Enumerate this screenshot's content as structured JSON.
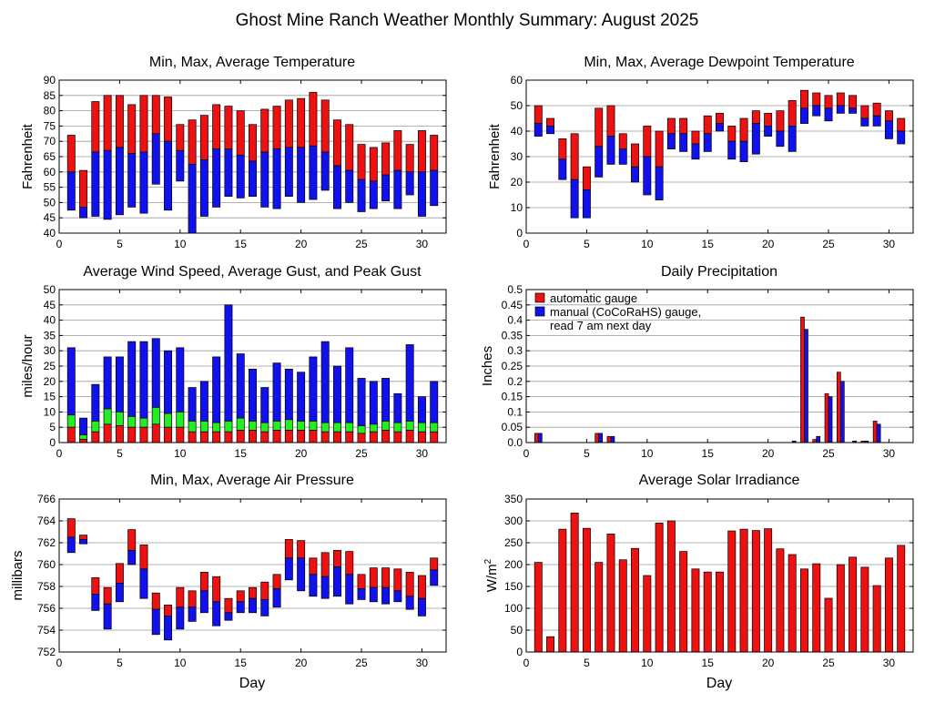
{
  "main_title": "Ghost Mine Ranch Weather Monthly Summary: August 2025",
  "colors": {
    "red": "#ee1111",
    "blue": "#1111ee",
    "green": "#22ee22"
  },
  "chart_data": [
    {
      "id": "temp",
      "type": "bar",
      "title": "Min, Max, Average Temperature",
      "xlabel": "",
      "ylabel": "Fahrenheit",
      "xlim": [
        0,
        32
      ],
      "ylim": [
        40,
        90
      ],
      "xticks": [
        0,
        5,
        10,
        15,
        20,
        25,
        30
      ],
      "yticks": [
        40,
        45,
        50,
        55,
        60,
        65,
        70,
        75,
        80,
        85,
        90
      ],
      "x": [
        1,
        2,
        3,
        4,
        5,
        6,
        7,
        8,
        9,
        10,
        11,
        12,
        13,
        14,
        15,
        16,
        17,
        18,
        19,
        20,
        21,
        22,
        23,
        24,
        25,
        26,
        27,
        28,
        29,
        30,
        31
      ],
      "series": [
        {
          "name": "min",
          "values": [
            47.5,
            45,
            45.5,
            44.5,
            46,
            48.5,
            46.5,
            56,
            47.5,
            57,
            40,
            45.5,
            48.5,
            52,
            51.5,
            52,
            48.5,
            48,
            52,
            50,
            51,
            54,
            48,
            50,
            47,
            48,
            50.5,
            48,
            52.5,
            45.5,
            49
          ]
        },
        {
          "name": "average",
          "values": [
            60,
            48.5,
            66.5,
            67,
            68,
            66,
            66.5,
            72.5,
            70,
            67,
            62.5,
            64,
            67.5,
            67.5,
            65.5,
            63.5,
            66.5,
            67.5,
            68,
            68,
            68.5,
            66.5,
            62,
            60.5,
            57.5,
            57,
            59,
            60.5,
            60,
            60,
            60.5
          ]
        },
        {
          "name": "max",
          "values": [
            72,
            60.5,
            83,
            85,
            85,
            82,
            85,
            85,
            84.5,
            75.5,
            77,
            78.5,
            82,
            81.5,
            80,
            75.5,
            80.5,
            81.5,
            83.5,
            84,
            86,
            83.5,
            77,
            75.5,
            69,
            68,
            69.5,
            73.5,
            69,
            73.5,
            72
          ]
        }
      ]
    },
    {
      "id": "dew",
      "type": "bar",
      "title": "Min, Max, Average Dewpoint Temperature",
      "xlabel": "",
      "ylabel": "Fahrenheit",
      "xlim": [
        0,
        32
      ],
      "ylim": [
        0,
        60
      ],
      "xticks": [
        0,
        5,
        10,
        15,
        20,
        25,
        30
      ],
      "yticks": [
        0,
        10,
        20,
        30,
        40,
        50,
        60
      ],
      "x": [
        1,
        2,
        3,
        4,
        5,
        6,
        7,
        8,
        9,
        10,
        11,
        12,
        13,
        14,
        15,
        16,
        17,
        18,
        19,
        20,
        21,
        22,
        23,
        24,
        25,
        26,
        27,
        28,
        29,
        30,
        31
      ],
      "series": [
        {
          "name": "min",
          "values": [
            38,
            39,
            21,
            6,
            6,
            22,
            27,
            27,
            20,
            15,
            13,
            33,
            32,
            29,
            32,
            40,
            29,
            28,
            31,
            38,
            34,
            32,
            43,
            46,
            44,
            47,
            47,
            42,
            42,
            37,
            35
          ]
        },
        {
          "name": "average",
          "values": [
            43,
            42,
            29,
            21,
            17,
            34,
            38,
            33,
            26,
            30,
            26,
            39,
            39,
            35,
            39,
            43,
            36,
            36,
            43,
            42,
            40,
            42,
            49,
            50,
            49,
            50,
            49,
            45,
            46,
            44,
            40
          ]
        },
        {
          "name": "max",
          "values": [
            50,
            45,
            37,
            39,
            26,
            49,
            50,
            39,
            35,
            42,
            40,
            45,
            45,
            40,
            46,
            47,
            42,
            45,
            48,
            47,
            48,
            52,
            56,
            55,
            54,
            55,
            54,
            50,
            51,
            48,
            45
          ]
        }
      ]
    },
    {
      "id": "wind",
      "type": "bar",
      "title": "Average Wind Speed, Average Gust, and Peak Gust",
      "xlabel": "",
      "ylabel": "miles/hour",
      "xlim": [
        0,
        32
      ],
      "ylim": [
        0,
        50
      ],
      "xticks": [
        0,
        5,
        10,
        15,
        20,
        25,
        30
      ],
      "yticks": [
        0,
        5,
        10,
        15,
        20,
        25,
        30,
        35,
        40,
        45,
        50
      ],
      "x": [
        1,
        2,
        3,
        4,
        5,
        6,
        7,
        8,
        9,
        10,
        11,
        12,
        13,
        14,
        15,
        16,
        17,
        18,
        19,
        20,
        21,
        22,
        23,
        24,
        25,
        26,
        27,
        28,
        29,
        30,
        31
      ],
      "series": [
        {
          "name": "average wind",
          "values": [
            5,
            1,
            3.5,
            6,
            5.5,
            5,
            5,
            6,
            5,
            5,
            3.5,
            3.5,
            3.5,
            3.5,
            4,
            4,
            3.5,
            4,
            4,
            4,
            4,
            3.5,
            3.5,
            3.5,
            3,
            3.5,
            4,
            3.5,
            4,
            3.5,
            3.5
          ]
        },
        {
          "name": "average gust",
          "values": [
            9,
            2.5,
            7,
            11,
            10,
            8.5,
            8,
            11.5,
            9.5,
            10,
            7,
            7,
            6.5,
            7,
            8,
            7,
            6.5,
            7,
            7.5,
            7,
            7,
            6.5,
            6.5,
            6.5,
            5.5,
            6,
            7,
            6.5,
            7,
            6.5,
            6.5
          ]
        },
        {
          "name": "peak gust",
          "values": [
            31,
            8,
            19,
            28,
            28,
            33,
            33,
            34,
            30,
            31,
            18,
            20,
            28,
            45,
            29,
            24,
            18,
            26,
            24,
            23,
            28,
            33,
            25,
            31,
            21,
            20,
            21,
            16,
            32,
            15,
            20
          ]
        }
      ]
    },
    {
      "id": "precip",
      "type": "bar",
      "title": "Daily Precipitation",
      "xlabel": "",
      "ylabel": "Inches",
      "xlim": [
        0,
        32
      ],
      "ylim": [
        0,
        0.5
      ],
      "xticks": [
        0,
        5,
        10,
        15,
        20,
        25,
        30
      ],
      "yticks": [
        0,
        0.05,
        0.1,
        0.15,
        0.2,
        0.25,
        0.3,
        0.35,
        0.4,
        0.45,
        0.5
      ],
      "ytick_labels": [
        "0.0",
        "0.05",
        "0.1",
        "0.15",
        "0.2",
        "0.25",
        "0.3",
        "0.35",
        "0.4",
        "0.45",
        "0.5"
      ],
      "legend": [
        {
          "label": "automatic gauge",
          "color": "red"
        },
        {
          "label": "manual (CoCoRaHS) gauge,",
          "color": "blue"
        },
        {
          "label": "read 7 am next day",
          "color": ""
        }
      ],
      "x": [
        1,
        2,
        3,
        4,
        5,
        6,
        7,
        8,
        9,
        10,
        11,
        12,
        13,
        14,
        15,
        16,
        17,
        18,
        19,
        20,
        21,
        22,
        23,
        24,
        25,
        26,
        27,
        28,
        29,
        30,
        31
      ],
      "series": [
        {
          "name": "automatic gauge",
          "values": [
            0.03,
            0,
            0,
            0,
            0,
            0.03,
            0.02,
            0,
            0,
            0,
            0,
            0,
            0,
            0,
            0,
            0,
            0,
            0,
            0,
            0,
            0,
            0,
            0.41,
            0.01,
            0.16,
            0.23,
            0,
            0.005,
            0.07,
            0,
            0
          ]
        },
        {
          "name": "manual (CoCoRaHS) gauge",
          "values": [
            0.03,
            0,
            0,
            0,
            0,
            0.03,
            0.02,
            0,
            0,
            0,
            0,
            0,
            0,
            0,
            0,
            0,
            0,
            0,
            0,
            0,
            0,
            0.005,
            0.37,
            0.02,
            0.15,
            0.2,
            0.005,
            0.005,
            0.06,
            0,
            0
          ]
        }
      ]
    },
    {
      "id": "pressure",
      "type": "bar",
      "title": "Min, Max, Average Air Pressure",
      "xlabel": "Day",
      "ylabel": "millibars",
      "xlim": [
        0,
        32
      ],
      "ylim": [
        752,
        766
      ],
      "xticks": [
        0,
        5,
        10,
        15,
        20,
        25,
        30
      ],
      "yticks": [
        752,
        754,
        756,
        758,
        760,
        762,
        764,
        766
      ],
      "x": [
        1,
        2,
        3,
        4,
        5,
        6,
        7,
        8,
        9,
        10,
        11,
        12,
        13,
        14,
        15,
        16,
        17,
        18,
        19,
        20,
        21,
        22,
        23,
        24,
        25,
        26,
        27,
        28,
        29,
        30,
        31
      ],
      "series": [
        {
          "name": "min",
          "values": [
            761.1,
            761.9,
            755.8,
            754.1,
            756.6,
            760,
            756.9,
            753.6,
            753.1,
            754.1,
            754.8,
            755.6,
            754.4,
            754.9,
            755.6,
            755.6,
            755.3,
            756.1,
            758.6,
            757.6,
            757.1,
            756.9,
            757.1,
            756.4,
            756.8,
            756.6,
            756.4,
            756.6,
            755.9,
            755.3,
            758.1
          ]
        },
        {
          "name": "average",
          "values": [
            762.5,
            762.3,
            757.3,
            756.4,
            758.3,
            761.3,
            759.6,
            755.9,
            755.3,
            756.1,
            756.1,
            757.6,
            756.6,
            755.6,
            756.6,
            756.9,
            756.8,
            757.8,
            760.6,
            760.6,
            759.1,
            758.9,
            759.8,
            759.1,
            757.8,
            757.9,
            757.9,
            757.6,
            757.1,
            756.9,
            759.5
          ]
        },
        {
          "name": "max",
          "values": [
            764.2,
            762.7,
            758.8,
            757.9,
            760.1,
            763.2,
            761.8,
            757.4,
            756.3,
            757.9,
            757.6,
            759.3,
            758.9,
            756.9,
            757.6,
            757.9,
            758.4,
            759.1,
            762.3,
            762.2,
            760.6,
            761.1,
            761.3,
            761.2,
            759.1,
            759.7,
            759.7,
            759.6,
            759.3,
            759,
            760.6
          ]
        }
      ]
    },
    {
      "id": "solar",
      "type": "bar",
      "title": "Average Solar Irradiance",
      "xlabel": "Day",
      "ylabel": "W/m",
      "ylabel_sup": "2",
      "xlim": [
        0,
        32
      ],
      "ylim": [
        0,
        350
      ],
      "xticks": [
        0,
        5,
        10,
        15,
        20,
        25,
        30
      ],
      "yticks": [
        0,
        50,
        100,
        150,
        200,
        250,
        300,
        350
      ],
      "x": [
        1,
        2,
        3,
        4,
        5,
        6,
        7,
        8,
        9,
        10,
        11,
        12,
        13,
        14,
        15,
        16,
        17,
        18,
        19,
        20,
        21,
        22,
        23,
        24,
        25,
        26,
        27,
        28,
        29,
        30,
        31
      ],
      "series": [
        {
          "name": "average solar irradiance",
          "values": [
            205,
            35,
            281,
            318,
            283,
            205,
            270,
            211,
            237,
            175,
            295,
            300,
            230,
            190,
            183,
            183,
            277,
            281,
            278,
            282,
            236,
            223,
            190,
            202,
            123,
            200,
            217,
            194,
            152,
            215,
            244
          ]
        }
      ]
    }
  ]
}
